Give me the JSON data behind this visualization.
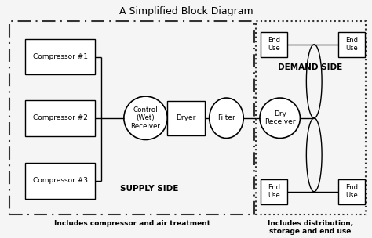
{
  "title": "A Simplified Block Diagram",
  "bg_color": "#f5f5f5",
  "supply_label": "SUPPLY SIDE",
  "demand_label": "DEMAND SIDE",
  "supply_footnote": "Includes compressor and air treatment",
  "demand_footnote": "Includes distribution,\nstorage and end use",
  "compressors": [
    "Compressor #1",
    "Compressor #2",
    "Compressor #3"
  ],
  "control_receiver": "Control\n(Wet)\nReceiver",
  "dryer": "Dryer",
  "filter": "Filter",
  "dry_receiver": "Dry\nReceiver",
  "end_use": "End\nUse",
  "fig_w": 4.74,
  "fig_h": 3.04,
  "dpi": 100
}
